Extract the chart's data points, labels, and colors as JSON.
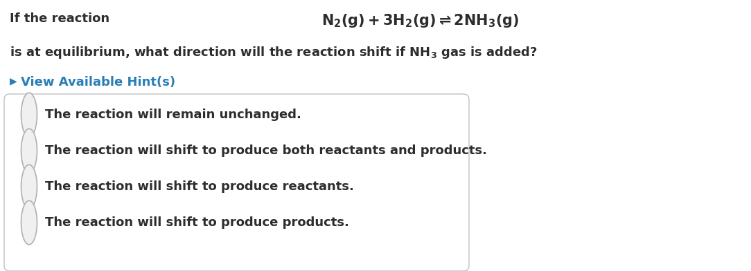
{
  "background_color": "#ffffff",
  "text_color": "#2d2d2d",
  "hint_color": "#2a7db5",
  "radio_edge_color": "#b0b0b0",
  "radio_face_color": "#f0f0f0",
  "box_face_color": "#ffffff",
  "box_edge_color": "#c0c0c0",
  "line1": "If the reaction",
  "hint_arrow": "▶",
  "hint_text": "View Available Hint(s)",
  "options": [
    "The reaction will remain unchanged.",
    "The reaction will shift to produce both reactants and products.",
    "The reaction will shift to produce reactants.",
    "The reaction will shift to produce products."
  ],
  "fig_width": 10.84,
  "fig_height": 3.92,
  "dpi": 100
}
